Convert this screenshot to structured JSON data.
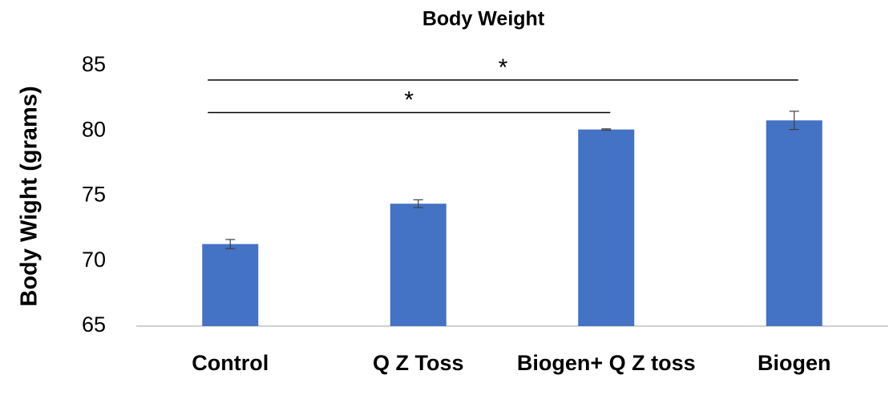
{
  "chart_data": {
    "type": "bar",
    "title": "Body Weight",
    "ylabel": "Body Wight (grams)",
    "categories": [
      "Control",
      "Q Z Toss",
      "Biogen+ Q Z toss",
      "Biogen"
    ],
    "values": [
      71.3,
      74.4,
      80.1,
      80.8
    ],
    "errors": [
      0.35,
      0.3,
      0.05,
      0.7
    ],
    "color": "#4472c4",
    "ylim": [
      65,
      85
    ],
    "yticks": [
      65,
      70,
      75,
      80,
      85
    ],
    "grid": false,
    "annotations": [
      {
        "text": "*",
        "from": 0,
        "to": 3,
        "y": 83.9
      },
      {
        "text": "*",
        "from": 0,
        "to": 2,
        "y": 81.4
      }
    ]
  }
}
